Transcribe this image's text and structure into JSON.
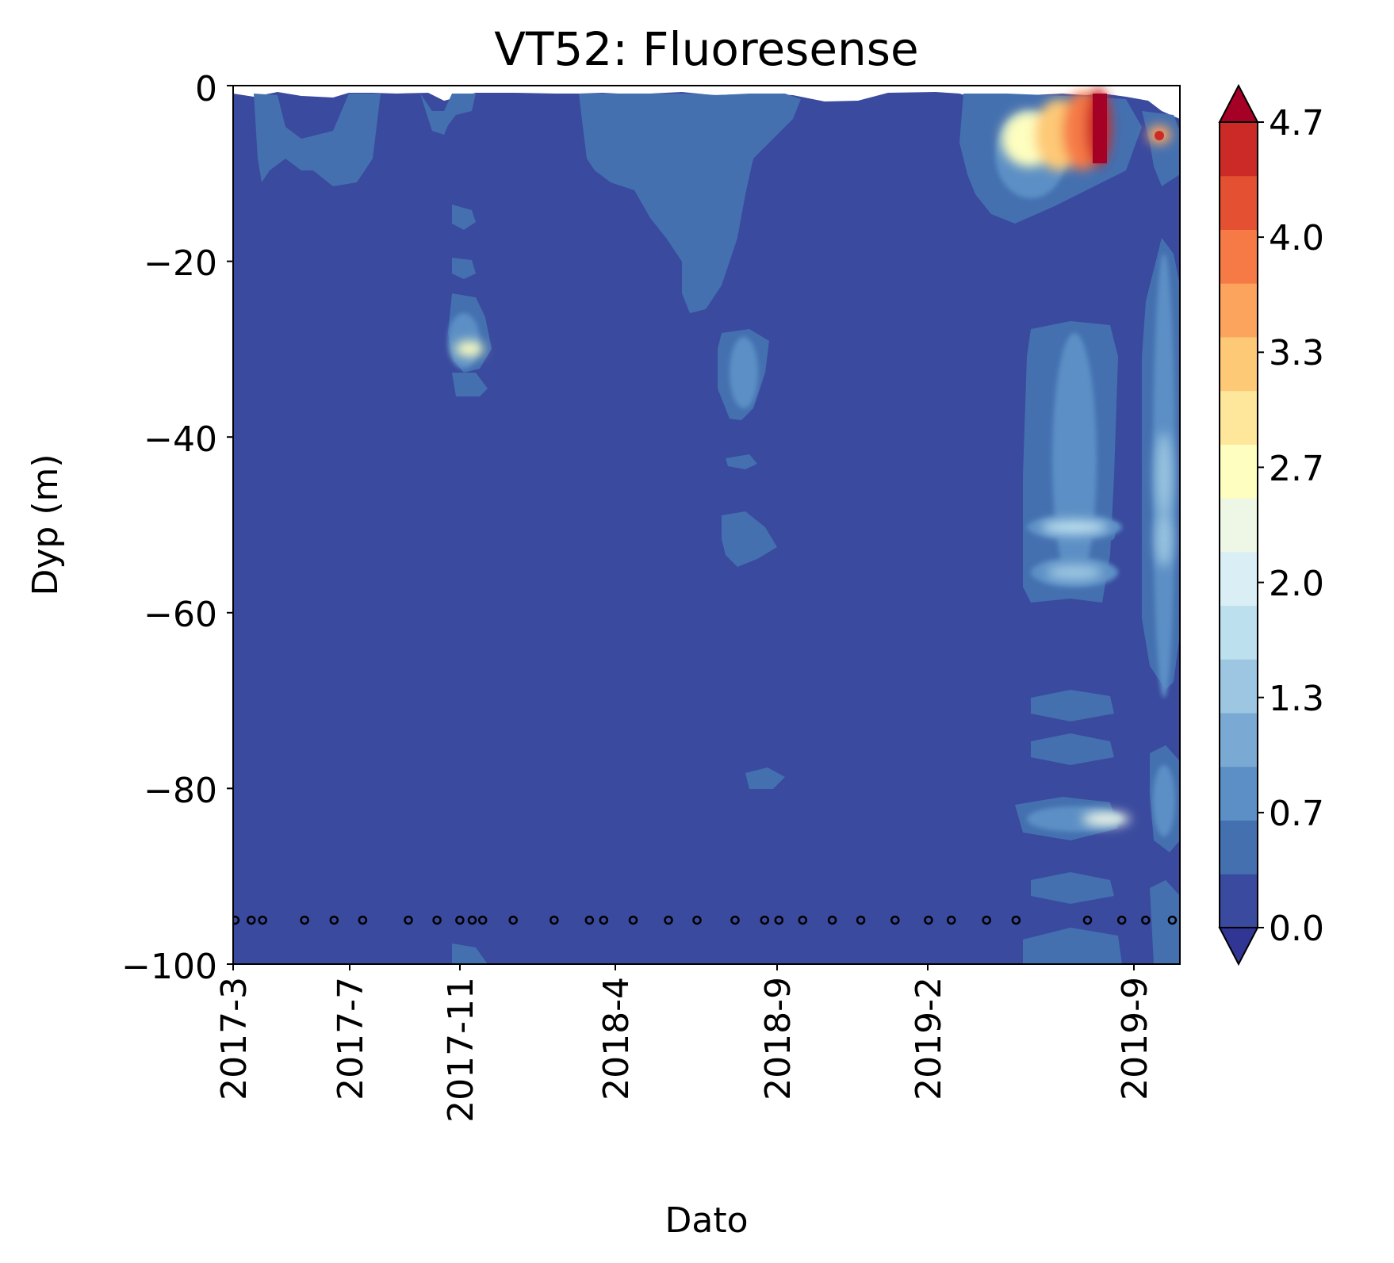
{
  "chart_data": {
    "type": "heatmap",
    "title": "VT52: Fluoresense",
    "xlabel": "Dato",
    "ylabel": "Dyp (m)",
    "x_ticks": [
      "2017-3",
      "2017-7",
      "2017-11",
      "2018-4",
      "2018-9",
      "2019-2",
      "2019-9"
    ],
    "y_ticks": [
      "0",
      "−20",
      "−40",
      "−60",
      "−80",
      "−100"
    ],
    "ylim": [
      -100,
      0
    ],
    "xlim": [
      "2017-3",
      "2019-11"
    ],
    "colorbar": {
      "extend": "both",
      "tick_labels": [
        "0.0",
        "0.7",
        "1.3",
        "2.0",
        "2.7",
        "3.3",
        "4.0",
        "4.7"
      ],
      "range": [
        0.0,
        4.7
      ],
      "levels": 15,
      "colors": [
        "#3a4a9e",
        "#4470b0",
        "#5b8fc5",
        "#7aa9d3",
        "#9cc6e1",
        "#bde0ee",
        "#daeff5",
        "#eef6e6",
        "#fdfec0",
        "#fee79a",
        "#fdc977",
        "#fca45e",
        "#f57a46",
        "#e45032",
        "#cc2a27"
      ],
      "under_color": "#313695",
      "over_color": "#a50026"
    },
    "sample_depth": -95,
    "sample_dates": [
      "2017-03-03",
      "2017-03-20",
      "2017-04-01",
      "2017-05-15",
      "2017-06-15",
      "2017-07-15",
      "2017-09-01",
      "2017-10-01",
      "2017-10-25",
      "2017-11-07",
      "2017-11-18",
      "2017-12-20",
      "2018-02-01",
      "2018-03-10",
      "2018-03-25",
      "2018-04-25",
      "2018-06-01",
      "2018-07-01",
      "2018-08-10",
      "2018-09-10",
      "2018-09-25",
      "2018-10-20",
      "2018-11-20",
      "2018-12-20",
      "2019-01-25",
      "2019-03-01",
      "2019-03-25",
      "2019-05-01",
      "2019-06-01",
      "2019-08-15",
      "2019-09-20",
      "2019-10-15",
      "2019-11-12"
    ],
    "heat_spots": [
      {
        "date": "2019-08-10",
        "depth": -5,
        "value": 4.7
      },
      {
        "date": "2019-07-20",
        "depth": -4,
        "value": 3.3
      },
      {
        "date": "2019-06-10",
        "depth": -5,
        "value": 1.2
      },
      {
        "date": "2019-10-10",
        "depth": -6,
        "value": 4.0
      },
      {
        "date": "2017-11-15",
        "depth": -30,
        "value": 2.5
      },
      {
        "date": "2019-07-20",
        "depth": -51,
        "value": 1.8
      },
      {
        "date": "2019-07-20",
        "depth": -57,
        "value": 1.6
      },
      {
        "date": "2019-07-20",
        "depth": -84,
        "value": 2.7
      },
      {
        "date": "2019-10-10",
        "depth": -44,
        "value": 1.6
      },
      {
        "date": "2019-10-10",
        "depth": -60,
        "value": 1.3
      }
    ]
  }
}
